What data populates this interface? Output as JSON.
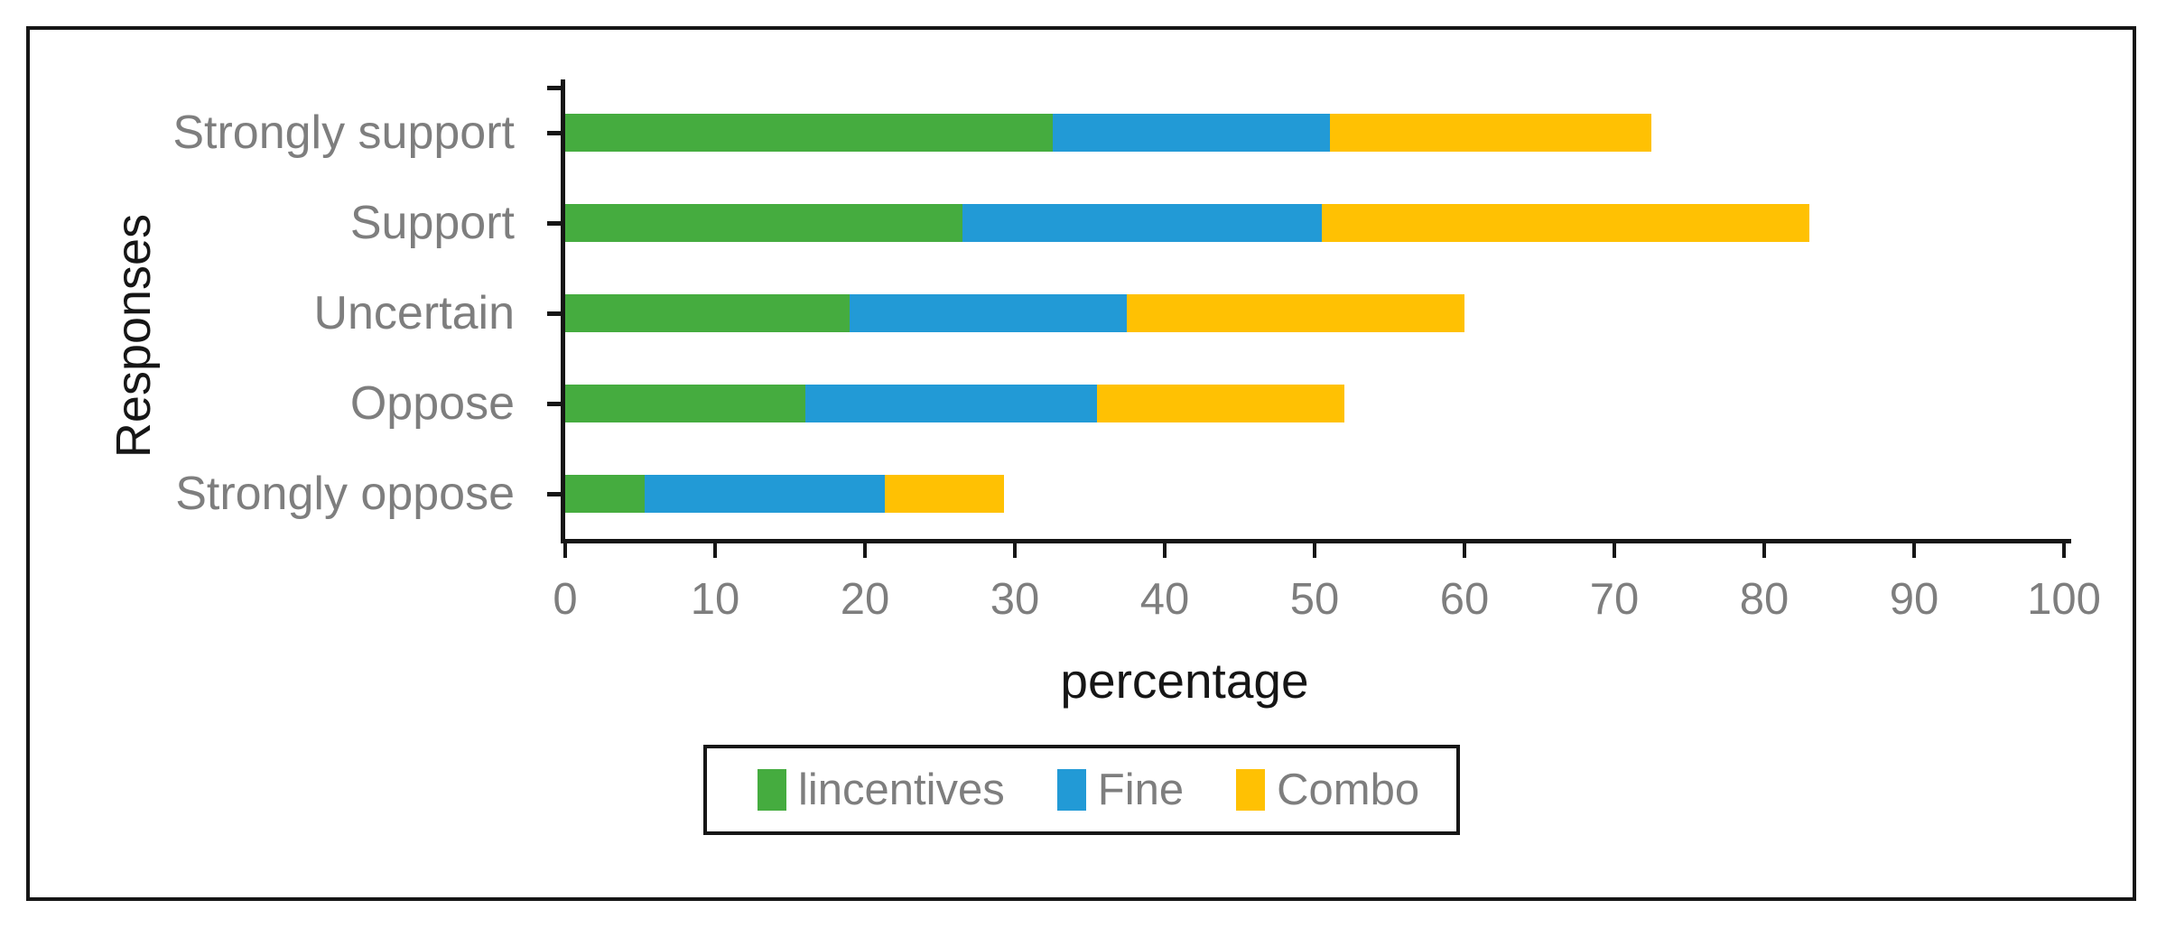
{
  "colors": {
    "incentives_green": "#45AC3F",
    "fine_blue": "#229AD6",
    "combo_yellow": "#FFC103",
    "axis_black": "#161616",
    "label_gray": "#7e7e7e",
    "background": "#ffffff",
    "frame_border": "#161616"
  },
  "chart_data": {
    "type": "bar",
    "orientation": "horizontal",
    "stacked": true,
    "title": "",
    "xlabel": "percentage",
    "ylabel": "Responses",
    "xlim": [
      0,
      100
    ],
    "xticks": [
      0,
      10,
      20,
      30,
      40,
      50,
      60,
      70,
      80,
      90,
      100
    ],
    "grid": false,
    "legend_position": "bottom",
    "categories": [
      "Strongly support",
      "Support",
      "Uncertain",
      "Oppose",
      "Strongly oppose"
    ],
    "series": [
      {
        "name": "lincentives",
        "color": "#45AC3F",
        "values": [
          32.5,
          26.5,
          19.0,
          16.0,
          5.3
        ]
      },
      {
        "name": "Fine",
        "color": "#229AD6",
        "values": [
          18.5,
          24.0,
          18.5,
          19.5,
          16.0
        ]
      },
      {
        "name": "Combo",
        "color": "#FFC103",
        "values": [
          21.5,
          32.5,
          22.5,
          16.5,
          8.0
        ]
      }
    ],
    "stack_totals": [
      72.5,
      83.0,
      60.0,
      52.0,
      29.3
    ]
  }
}
